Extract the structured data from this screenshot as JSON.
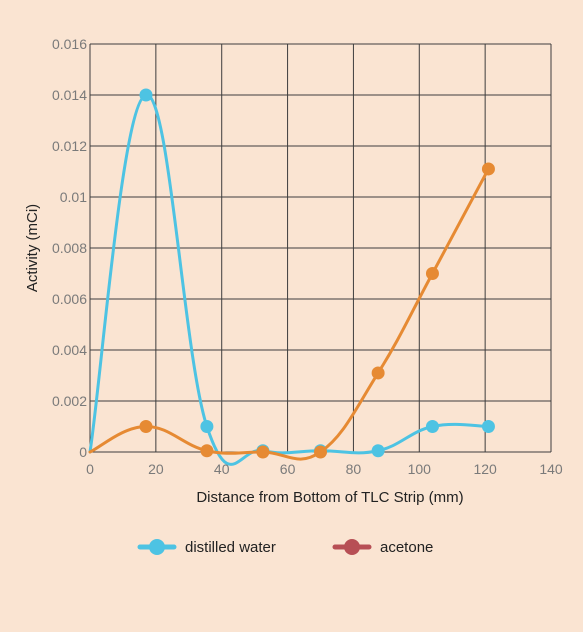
{
  "chart_data": {
    "type": "line",
    "xlabel": "Distance from Bottom of TLC Strip (mm)",
    "ylabel": "Activity (mCi)",
    "xlim": [
      0,
      140
    ],
    "ylim": [
      0,
      0.016
    ],
    "x_ticks": [
      "0",
      "20",
      "40",
      "60",
      "80",
      "100",
      "120",
      "140"
    ],
    "y_ticks": [
      "0",
      "0.002",
      "0.004",
      "0.006",
      "0.008",
      "0.01",
      "0.012",
      "0.014",
      "0.016"
    ],
    "grid": true,
    "smooth": true,
    "legend_position": "bottom",
    "series": [
      {
        "name": "distilled water",
        "color": "#4dc3e3",
        "legend_color": "#4dc3e3",
        "x": [
          0,
          17,
          35.5,
          52.5,
          70,
          87.5,
          104,
          121
        ],
        "y": [
          0,
          0.014,
          0.001,
          5e-05,
          5e-05,
          5e-05,
          0.001,
          0.001
        ]
      },
      {
        "name": "acetone",
        "color": "#e68a33",
        "legend_color": "#b74f55",
        "x": [
          0,
          17,
          35.5,
          52.5,
          70,
          87.5,
          104,
          121
        ],
        "y": [
          0,
          0.001,
          5e-05,
          0,
          0,
          0.0031,
          0.007,
          0.0111
        ]
      }
    ]
  }
}
